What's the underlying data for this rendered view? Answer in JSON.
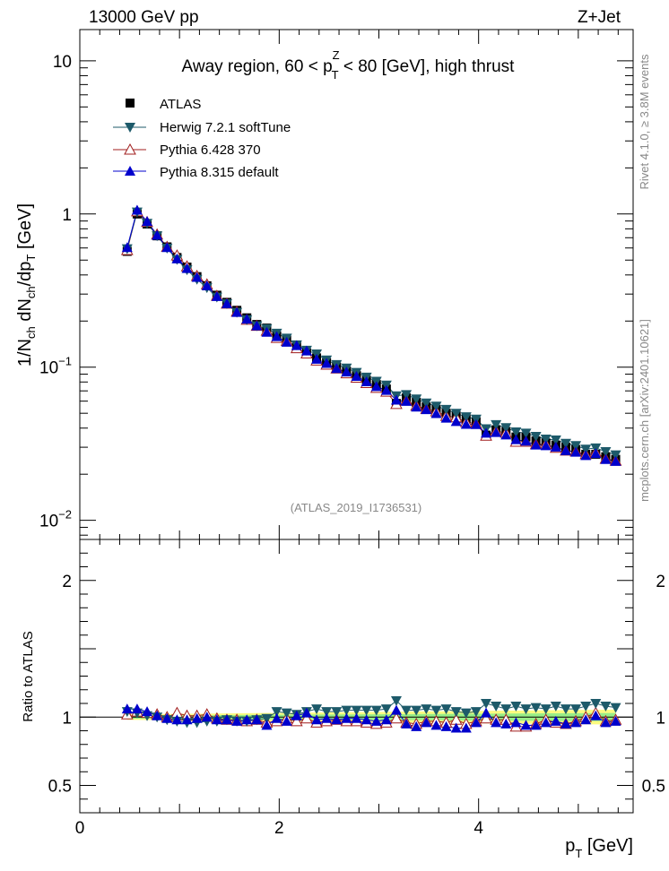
{
  "header": {
    "left": "13000 GeV pp",
    "right": "Z+Jet"
  },
  "side_labels": {
    "rivet": "Rivet 4.1.0, ≥ 3.8M events",
    "mcplots": "mcplots.cern.ch [arXiv:2401.10621]"
  },
  "chart_data": {
    "type": "scatter",
    "title": {
      "prefix": "Away region, 60 < p",
      "sup": "Z",
      "sub": "T",
      "suffix": " < 80 [GeV], high thrust"
    },
    "watermark": "(ATLAS_2019_I1736531)",
    "ylabel": {
      "a": "1/N",
      "a_sub": "ch",
      "b": " dN",
      "b_sub": "ch",
      "c": "/dp",
      "c_sub": "T",
      "d": " [GeV]"
    },
    "ratio_ylabel": "Ratio to ATLAS",
    "xlabel": {
      "main": "p",
      "sub": "T",
      "unit": " [GeV]"
    },
    "xlim": [
      0,
      5.55
    ],
    "ylim": [
      0.0075,
      16
    ],
    "yscale": "log",
    "ratio_ylim": [
      0.3,
      2.3
    ],
    "x_ticks": [
      {
        "v": 0,
        "label": "0"
      },
      {
        "v": 2,
        "label": "2"
      },
      {
        "v": 4,
        "label": "4"
      }
    ],
    "y_ticks": [
      {
        "v": 0.01,
        "base": "10",
        "exp": "−2"
      },
      {
        "v": 0.1,
        "base": "10",
        "exp": "−1"
      },
      {
        "v": 1,
        "base": "1",
        "exp": ""
      },
      {
        "v": 10,
        "base": "10",
        "exp": ""
      }
    ],
    "ratio_ticks": [
      {
        "v": 0.5,
        "label": "0.5"
      },
      {
        "v": 1,
        "label": "1"
      },
      {
        "v": 2,
        "label": "2"
      }
    ],
    "x": [
      0.475,
      0.575,
      0.675,
      0.775,
      0.875,
      0.975,
      1.075,
      1.175,
      1.275,
      1.375,
      1.475,
      1.575,
      1.675,
      1.775,
      1.875,
      1.975,
      2.075,
      2.175,
      2.275,
      2.375,
      2.475,
      2.575,
      2.675,
      2.775,
      2.875,
      2.975,
      3.075,
      3.175,
      3.275,
      3.375,
      3.475,
      3.575,
      3.675,
      3.775,
      3.875,
      3.975,
      4.075,
      4.175,
      4.275,
      4.375,
      4.475,
      4.575,
      4.675,
      4.775,
      4.875,
      4.975,
      5.075,
      5.175,
      5.275,
      5.375
    ],
    "atlas": [
      0.57,
      1.0,
      0.86,
      0.72,
      0.61,
      0.52,
      0.45,
      0.39,
      0.34,
      0.295,
      0.265,
      0.235,
      0.21,
      0.19,
      0.18,
      0.16,
      0.15,
      0.137,
      0.124,
      0.115,
      0.107,
      0.1,
      0.094,
      0.088,
      0.082,
      0.077,
      0.072,
      0.058,
      0.063,
      0.059,
      0.055,
      0.053,
      0.05,
      0.048,
      0.046,
      0.044,
      0.036,
      0.039,
      0.038,
      0.035,
      0.035,
      0.033,
      0.032,
      0.031,
      0.03,
      0.029,
      0.027,
      0.027,
      0.026,
      0.025
    ],
    "series": [
      {
        "name": "ATLAS",
        "marker": "square",
        "color": "#000000"
      },
      {
        "name": "Herwig 7.2.1 softTune",
        "marker": "tri-down",
        "color": "#1d5a6a",
        "ratio": [
          1.04,
          1.03,
          1.01,
          1.0,
          0.98,
          0.97,
          0.96,
          0.96,
          0.97,
          0.97,
          0.98,
          0.97,
          0.97,
          0.98,
          0.99,
          1.04,
          1.03,
          1.02,
          1.04,
          1.06,
          1.04,
          1.04,
          1.05,
          1.05,
          1.05,
          1.05,
          1.06,
          1.12,
          1.05,
          1.05,
          1.06,
          1.05,
          1.06,
          1.04,
          1.03,
          1.04,
          1.1,
          1.08,
          1.06,
          1.08,
          1.06,
          1.07,
          1.06,
          1.08,
          1.06,
          1.06,
          1.08,
          1.1,
          1.08,
          1.07
        ]
      },
      {
        "name": "Pythia 6.428 370",
        "marker": "tri-open",
        "color": "#a01c1c",
        "ratio": [
          1.02,
          1.04,
          1.03,
          1.02,
          1.0,
          1.03,
          1.01,
          1.01,
          1.02,
          0.99,
          0.98,
          0.98,
          0.97,
          0.98,
          0.96,
          0.97,
          0.99,
          0.97,
          0.99,
          0.96,
          0.97,
          0.98,
          0.97,
          0.97,
          0.96,
          0.95,
          0.96,
          0.99,
          0.96,
          0.95,
          0.97,
          0.97,
          0.96,
          0.98,
          0.95,
          0.97,
          0.99,
          0.98,
          0.98,
          0.93,
          0.93,
          0.95,
          0.98,
          0.96,
          0.95,
          0.97,
          1.0,
          1.03,
          0.97,
          0.98
        ]
      },
      {
        "name": "Pythia 8.315 default",
        "marker": "tri-up",
        "color": "#0000cc",
        "ratio": [
          1.06,
          1.06,
          1.04,
          1.01,
          0.99,
          0.98,
          0.98,
          0.99,
          1.0,
          0.98,
          0.98,
          0.97,
          0.98,
          0.98,
          0.94,
          0.99,
          0.97,
          1.01,
          1.03,
          0.98,
          0.99,
          0.98,
          0.99,
          0.99,
          0.98,
          0.97,
          0.98,
          1.05,
          0.95,
          0.93,
          0.96,
          0.94,
          0.93,
          0.92,
          0.92,
          0.96,
          1.03,
          0.96,
          0.95,
          0.96,
          0.94,
          0.94,
          0.96,
          0.97,
          0.95,
          0.96,
          0.98,
          1.01,
          0.96,
          0.97
        ]
      }
    ]
  }
}
